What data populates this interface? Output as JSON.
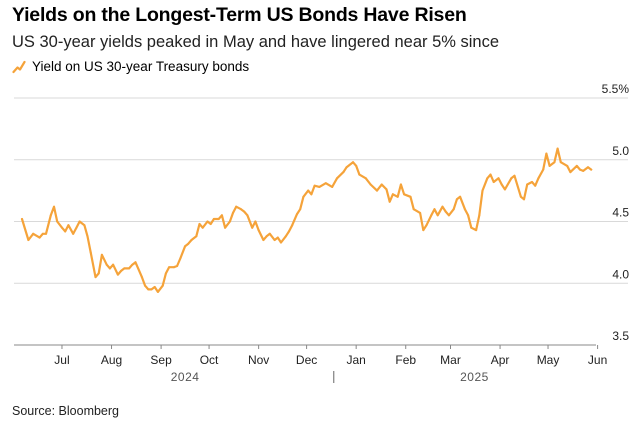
{
  "header": {
    "title": "Yields on the Longest-Term US Bonds Have Risen",
    "subtitle": "US 30-year yields peaked in May and have lingered near 5% since"
  },
  "legend": {
    "label": "Yield on US 30-year Treasury bonds",
    "icon": "line-swatch-icon"
  },
  "footer": {
    "source": "Source: Bloomberg"
  },
  "colors": {
    "line": "#F5A33A",
    "grid": "#D9D9D9",
    "axis": "#888888"
  },
  "chart_data": {
    "type": "line",
    "title": "Yields on the Longest-Term US Bonds Have Risen",
    "subtitle": "US 30-year yields peaked in May and have lingered near 5% since",
    "ylabel": "",
    "xlabel": "",
    "y_axis_position": "right",
    "ylim": [
      3.5,
      5.5
    ],
    "y_ticks": [
      {
        "value": 3.5,
        "label": "3.5"
      },
      {
        "value": 4.0,
        "label": "4.0"
      },
      {
        "value": 4.5,
        "label": "4.5"
      },
      {
        "value": 5.0,
        "label": "5.0"
      },
      {
        "value": 5.5,
        "label": "5.5%"
      }
    ],
    "xlim": [
      "2024-06-15",
      "2025-06-14"
    ],
    "x_ticks": [
      {
        "date": "2024-07-15",
        "label": "Jul"
      },
      {
        "date": "2024-08-15",
        "label": "Aug"
      },
      {
        "date": "2024-09-15",
        "label": "Sep"
      },
      {
        "date": "2024-10-15",
        "label": "Oct"
      },
      {
        "date": "2024-11-15",
        "label": "Nov"
      },
      {
        "date": "2024-12-15",
        "label": "Dec"
      },
      {
        "date": "2025-01-15",
        "label": "Jan"
      },
      {
        "date": "2025-02-15",
        "label": "Feb"
      },
      {
        "date": "2025-03-15",
        "label": "Mar"
      },
      {
        "date": "2025-04-15",
        "label": "Apr"
      },
      {
        "date": "2025-05-15",
        "label": "May"
      },
      {
        "date": "2025-06-15",
        "label": "Jun"
      }
    ],
    "year_labels": [
      {
        "date": "2024-09-30",
        "label": "2024"
      },
      {
        "date": "2025-03-30",
        "label": "2025"
      }
    ],
    "year_divider": "2025-01-01",
    "grid": true,
    "legend_position": "top-left",
    "series": [
      {
        "name": "Yield on US 30-year Treasury bonds",
        "x": [
          "2024-06-20",
          "2024-06-24",
          "2024-06-27",
          "2024-07-01",
          "2024-07-03",
          "2024-07-05",
          "2024-07-08",
          "2024-07-10",
          "2024-07-12",
          "2024-07-15",
          "2024-07-17",
          "2024-07-19",
          "2024-07-22",
          "2024-07-24",
          "2024-07-26",
          "2024-07-29",
          "2024-07-31",
          "2024-08-02",
          "2024-08-05",
          "2024-08-07",
          "2024-08-09",
          "2024-08-12",
          "2024-08-14",
          "2024-08-16",
          "2024-08-19",
          "2024-08-21",
          "2024-08-23",
          "2024-08-26",
          "2024-08-28",
          "2024-08-30",
          "2024-09-03",
          "2024-09-05",
          "2024-09-07",
          "2024-09-09",
          "2024-09-11",
          "2024-09-13",
          "2024-09-16",
          "2024-09-18",
          "2024-09-20",
          "2024-09-23",
          "2024-09-25",
          "2024-09-27",
          "2024-09-30",
          "2024-10-02",
          "2024-10-04",
          "2024-10-07",
          "2024-10-09",
          "2024-10-11",
          "2024-10-14",
          "2024-10-16",
          "2024-10-18",
          "2024-10-21",
          "2024-10-23",
          "2024-10-25",
          "2024-10-28",
          "2024-10-30",
          "2024-11-01",
          "2024-11-04",
          "2024-11-06",
          "2024-11-08",
          "2024-11-11",
          "2024-11-13",
          "2024-11-15",
          "2024-11-18",
          "2024-11-20",
          "2024-11-22",
          "2024-11-25",
          "2024-11-27",
          "2024-11-29",
          "2024-12-02",
          "2024-12-04",
          "2024-12-06",
          "2024-12-09",
          "2024-12-11",
          "2024-12-13",
          "2024-12-16",
          "2024-12-18",
          "2024-12-20",
          "2024-12-23",
          "2024-12-27",
          "2024-12-31",
          "2025-01-03",
          "2025-01-07",
          "2025-01-09",
          "2025-01-13",
          "2025-01-15",
          "2025-01-17",
          "2025-01-21",
          "2025-01-24",
          "2025-01-28",
          "2025-01-31",
          "2025-02-03",
          "2025-02-05",
          "2025-02-07",
          "2025-02-10",
          "2025-02-12",
          "2025-02-14",
          "2025-02-18",
          "2025-02-20",
          "2025-02-24",
          "2025-02-26",
          "2025-02-28",
          "2025-03-03",
          "2025-03-05",
          "2025-03-07",
          "2025-03-10",
          "2025-03-12",
          "2025-03-14",
          "2025-03-17",
          "2025-03-19",
          "2025-03-21",
          "2025-03-24",
          "2025-03-26",
          "2025-03-28",
          "2025-03-31",
          "2025-04-02",
          "2025-04-04",
          "2025-04-07",
          "2025-04-09",
          "2025-04-11",
          "2025-04-14",
          "2025-04-16",
          "2025-04-18",
          "2025-04-22",
          "2025-04-24",
          "2025-04-28",
          "2025-04-30",
          "2025-05-02",
          "2025-05-05",
          "2025-05-07",
          "2025-05-09",
          "2025-05-12",
          "2025-05-14",
          "2025-05-16",
          "2025-05-19",
          "2025-05-21",
          "2025-05-23",
          "2025-05-27",
          "2025-05-29",
          "2025-06-02",
          "2025-06-04",
          "2025-06-06",
          "2025-06-09",
          "2025-06-11"
        ],
        "y": [
          4.52,
          4.35,
          4.4,
          4.37,
          4.4,
          4.4,
          4.55,
          4.62,
          4.5,
          4.45,
          4.42,
          4.47,
          4.4,
          4.45,
          4.5,
          4.47,
          4.38,
          4.25,
          4.05,
          4.08,
          4.23,
          4.15,
          4.12,
          4.15,
          4.07,
          4.1,
          4.12,
          4.12,
          4.15,
          4.17,
          4.05,
          3.98,
          3.95,
          3.95,
          3.97,
          3.93,
          3.98,
          4.08,
          4.13,
          4.13,
          4.14,
          4.2,
          4.3,
          4.32,
          4.35,
          4.38,
          4.48,
          4.45,
          4.5,
          4.48,
          4.52,
          4.52,
          4.55,
          4.45,
          4.5,
          4.57,
          4.62,
          4.6,
          4.58,
          4.55,
          4.45,
          4.5,
          4.43,
          4.35,
          4.38,
          4.4,
          4.35,
          4.37,
          4.33,
          4.38,
          4.42,
          4.47,
          4.56,
          4.6,
          4.7,
          4.75,
          4.72,
          4.79,
          4.78,
          4.81,
          4.78,
          4.85,
          4.9,
          4.94,
          4.98,
          4.95,
          4.88,
          4.85,
          4.8,
          4.75,
          4.8,
          4.76,
          4.66,
          4.72,
          4.7,
          4.8,
          4.72,
          4.7,
          4.6,
          4.57,
          4.43,
          4.47,
          4.55,
          4.6,
          4.55,
          4.62,
          4.58,
          4.55,
          4.6,
          4.68,
          4.7,
          4.6,
          4.55,
          4.45,
          4.43,
          4.55,
          4.75,
          4.85,
          4.88,
          4.82,
          4.85,
          4.8,
          4.76,
          4.85,
          4.87,
          4.7,
          4.68,
          4.8,
          4.82,
          4.79,
          4.85,
          4.92,
          5.05,
          4.95,
          4.98,
          5.09,
          4.98,
          4.95,
          4.9,
          4.95,
          4.92,
          4.91,
          4.94,
          4.92
        ]
      }
    ]
  }
}
